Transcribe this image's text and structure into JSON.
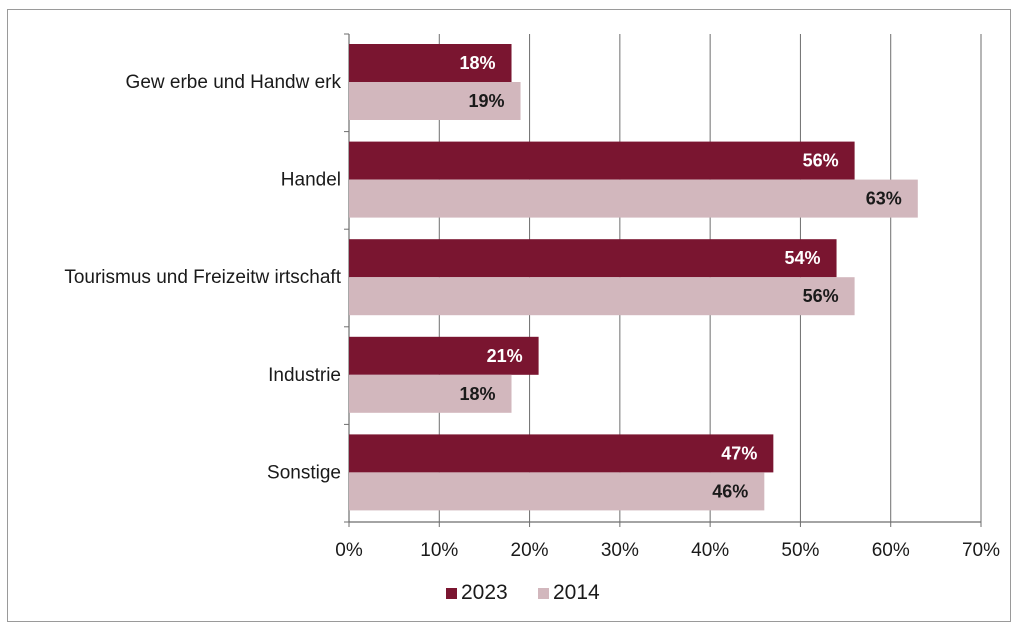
{
  "chart_data": {
    "type": "bar",
    "orientation": "horizontal",
    "categories": [
      "Gewerbe und Handwerk",
      "Handel",
      "Tourismus und Freizeitwirtschaft",
      "Industrie",
      "Sonstige"
    ],
    "category_labels": [
      "Gew erbe und Handw erk",
      "Handel",
      "Tourismus und Freizeitw irtschaft",
      "Industrie",
      "Sonstige"
    ],
    "series": [
      {
        "name": "2023",
        "values": [
          18,
          56,
          54,
          21,
          47
        ],
        "labels": [
          "18%",
          "56%",
          "54%",
          "21%",
          "47%"
        ],
        "color": "#7a1530",
        "label_color": "#ffffff"
      },
      {
        "name": "2014",
        "values": [
          19,
          63,
          56,
          18,
          46
        ],
        "labels": [
          "19%",
          "63%",
          "56%",
          "18%",
          "46%"
        ],
        "color": "#d2b7bd",
        "label_color": "#1a1a1a"
      }
    ],
    "xlim": [
      0,
      70
    ],
    "xticks": [
      0,
      10,
      20,
      30,
      40,
      50,
      60,
      70
    ],
    "xtick_labels": [
      "0%",
      "10%",
      "20%",
      "30%",
      "40%",
      "50%",
      "60%",
      "70%"
    ],
    "grid": "vertical",
    "legend": "bottom",
    "title": "",
    "xlabel": "",
    "ylabel": ""
  }
}
